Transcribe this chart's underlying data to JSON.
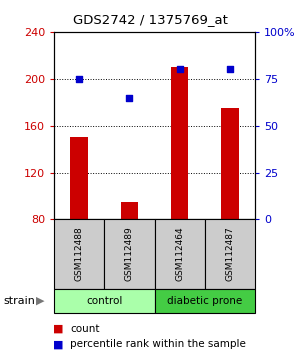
{
  "title": "GDS2742 / 1375769_at",
  "samples": [
    "GSM112488",
    "GSM112489",
    "GSM112464",
    "GSM112487"
  ],
  "counts": [
    150,
    95,
    210,
    175
  ],
  "percentiles": [
    75,
    65,
    80,
    80
  ],
  "groups": [
    {
      "label": "control",
      "samples": [
        0,
        1
      ],
      "color": "#aaffaa"
    },
    {
      "label": "diabetic prone",
      "samples": [
        2,
        3
      ],
      "color": "#44cc44"
    }
  ],
  "group_label": "strain",
  "bar_color": "#cc0000",
  "dot_color": "#0000cc",
  "ylim_left": [
    80,
    240
  ],
  "yticks_left": [
    80,
    120,
    160,
    200,
    240
  ],
  "ylim_right": [
    0,
    100
  ],
  "yticks_right": [
    0,
    25,
    50,
    75,
    100
  ],
  "ytick_labels_right": [
    "0",
    "25",
    "50",
    "75",
    "100%"
  ],
  "grid_values": [
    120,
    160,
    200
  ],
  "background_color": "#ffffff",
  "sample_box_color": "#cccccc",
  "legend_count_label": "count",
  "legend_pct_label": "percentile rank within the sample"
}
